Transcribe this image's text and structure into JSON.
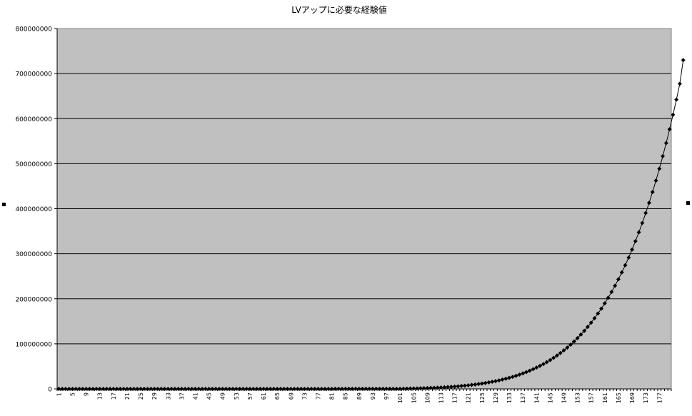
{
  "chart_data": {
    "type": "line",
    "title": "LVアップに必要な経験値",
    "xlabel": "",
    "ylabel": "",
    "x_start": 1,
    "x_end": 180,
    "x_tick_labels": [
      "1",
      "5",
      "9",
      "13",
      "17",
      "21",
      "25",
      "29",
      "33",
      "37",
      "41",
      "45",
      "49",
      "53",
      "57",
      "61",
      "65",
      "69",
      "73",
      "77",
      "81",
      "85",
      "89",
      "93",
      "97",
      "101",
      "105",
      "109",
      "113",
      "117",
      "121",
      "125",
      "129",
      "133",
      "137",
      "141",
      "145",
      "149",
      "153",
      "157",
      "161",
      "165",
      "169",
      "173",
      "177"
    ],
    "y_tick_labels": [
      "0",
      "100000000",
      "200000000",
      "300000000",
      "400000000",
      "500000000",
      "600000000",
      "700000000",
      "800000000"
    ],
    "ylim": [
      0,
      800000000
    ],
    "grid": "horizontal",
    "legend": "none",
    "series": [
      {
        "marker": "diamond",
        "color": "#000000",
        "values": [
          0,
          0,
          1,
          2,
          4,
          8,
          14,
          22,
          34,
          48,
          67,
          90,
          119,
          154,
          196,
          246,
          305,
          373,
          453,
          544,
          648,
          766,
          899,
          1048,
          1215,
          1401,
          1607,
          1834,
          2084,
          2358,
          2658,
          2985,
          3341,
          3728,
          4146,
          4598,
          5086,
          5611,
          6175,
          6780,
          7428,
          8120,
          8859,
          9647,
          10486,
          11379,
          12327,
          13333,
          14400,
          15530,
          16726,
          17990,
          19325,
          20733,
          22218,
          23783,
          25431,
          27164,
          28986,
          30900,
          32909,
          35017,
          37226,
          39540,
          41963,
          44498,
          47149,
          49919,
          52812,
          55832,
          58983,
          62269,
          65693,
          69260,
          72974,
          76839,
          80859,
          85039,
          89383,
          93895,
          98580,
          103443,
          108488,
          113720,
          119144,
          124765,
          130587,
          136616,
          142857,
          148315,
          162140,
          168000,
          173000,
          180000,
          189000,
          200000,
          210000,
          219000,
          229000,
          239000,
          249000,
          300000,
          500000,
          700000,
          900000,
          1050000,
          1300000,
          1500000,
          1800000,
          2100000,
          2400000,
          2800000,
          3200000,
          3600000,
          4100000,
          4600000,
          5200000,
          5800000,
          6500000,
          7200000,
          8000000,
          8900000,
          9800000,
          10800000,
          11900000,
          13100000,
          14400000,
          15800000,
          17300000,
          18900000,
          20700000,
          22600000,
          24600000,
          26800000,
          29200000,
          31700000,
          34400000,
          37300000,
          40400000,
          43700000,
          47300000,
          51100000,
          55100000,
          59400000,
          64000000,
          68900000,
          74100000,
          79600000,
          85500000,
          91700000,
          98300000,
          105300000,
          112700000,
          120600000,
          128900000,
          137700000,
          147000000,
          156900000,
          167300000,
          178300000,
          190000000,
          202300000,
          215300000,
          229000000,
          243400000,
          258600000,
          274600000,
          291500000,
          309300000,
          328000000,
          347700000,
          368400000,
          390200000,
          413100000,
          437100000,
          462300000,
          488800000,
          516600000,
          545800000,
          576400000,
          608500000,
          642200000,
          677500000,
          730000000
        ]
      }
    ]
  }
}
